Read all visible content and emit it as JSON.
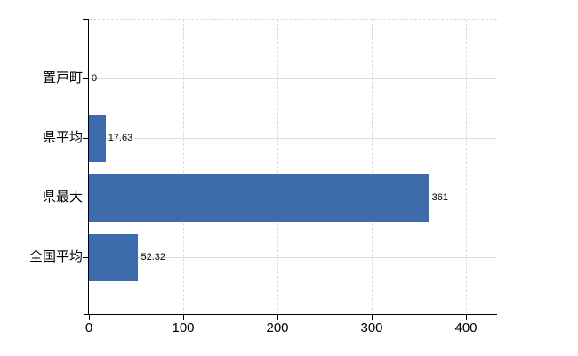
{
  "chart_data": {
    "type": "bar",
    "orientation": "horizontal",
    "title": "",
    "xlabel": "",
    "ylabel": "",
    "categories": [
      "置戸町",
      "県平均",
      "県最大",
      "全国平均"
    ],
    "values": [
      0,
      17.63,
      361,
      52.32
    ],
    "value_labels": [
      "0",
      "17.63",
      "361",
      "52.32"
    ],
    "x_tick_labels": [
      "0",
      "100",
      "200",
      "300",
      "400"
    ],
    "x_tick_values": [
      0,
      100,
      200,
      300,
      400
    ],
    "xlim": [
      0,
      433
    ],
    "grid": true,
    "legend": false,
    "colors": {
      "bar": "#3e6bac",
      "axis": "#000000",
      "text": "#000000",
      "h_grid": "#d8e2d6",
      "v_grid": "#d9d9d9",
      "background": "#ffffff"
    }
  }
}
